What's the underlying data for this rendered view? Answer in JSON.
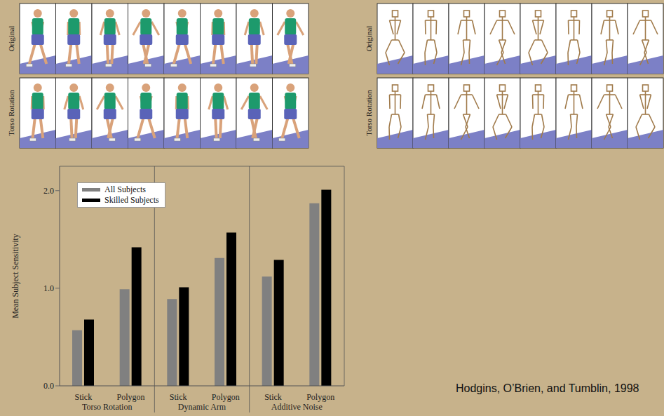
{
  "chart_data": {
    "type": "bar",
    "categories": [
      "Stick",
      "Polygon",
      "Stick",
      "Polygon",
      "Stick",
      "Polygon"
    ],
    "groups": [
      "Torso Rotation",
      "Dynamic Arm",
      "Additive Noise"
    ],
    "y_label": "Mean Subject Sensitivity",
    "series": [
      {
        "name": "All Subjects",
        "color": "#808080",
        "values": [
          0.57,
          0.99,
          0.89,
          1.31,
          1.12,
          1.87
        ]
      },
      {
        "name": "Skilled Subjects",
        "color": "#000000",
        "values": [
          0.68,
          1.42,
          1.01,
          1.57,
          1.29,
          2.01
        ]
      }
    ],
    "ylim": [
      0,
      2.25
    ],
    "yticks": [
      {
        "value": 0,
        "label": "0.0"
      },
      {
        "value": 1,
        "label": "1.0"
      },
      {
        "value": 2,
        "label": "2.0"
      }
    ],
    "legend": "upper left",
    "grid": false
  },
  "image_strips": [
    {
      "rows": [
        "Original",
        "Torso Rotation"
      ]
    },
    {
      "rows": [
        "Original",
        "Torso Rotation"
      ]
    }
  ],
  "citation": "Hodgins, O’Brien, and Tumblin, 1998"
}
